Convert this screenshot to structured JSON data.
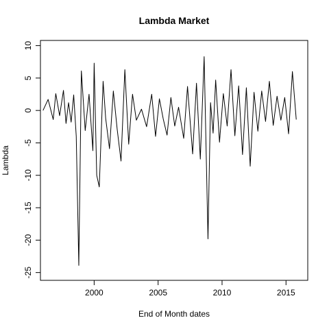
{
  "chart_data": {
    "type": "line",
    "title": "Lambda Market",
    "xlabel": "End of Month dates",
    "ylabel": "Lambda",
    "xlim": [
      1995.8,
      2016.7
    ],
    "ylim": [
      -26.2,
      10.8
    ],
    "grid": false,
    "line_color": "#000000",
    "x_ticks": [
      2000,
      2005,
      2010,
      2015
    ],
    "x_tick_labels": [
      "2000",
      "2005",
      "2010",
      "2015"
    ],
    "y_ticks": [
      10,
      5,
      0,
      -5,
      -10,
      -15,
      -20,
      -25
    ],
    "y_tick_labels": [
      "10",
      "5",
      "0",
      "-5",
      "-10",
      "-15",
      "-20",
      "-25"
    ],
    "series": [
      {
        "x": [
          1996.0,
          1996.4,
          1996.8,
          1997.0,
          1997.3,
          1997.6,
          1997.8,
          1998.0,
          1998.2,
          1998.4,
          1998.6,
          1998.8,
          1999.0,
          1999.3,
          1999.6,
          1999.9,
          2000.0,
          2000.2,
          2000.4,
          2000.7,
          2000.9,
          2001.2,
          2001.5,
          2001.8,
          2002.1,
          2002.4,
          2002.7,
          2003.0,
          2003.3,
          2003.7,
          2004.1,
          2004.5,
          2004.8,
          2005.1,
          2005.4,
          2005.7,
          2006.0,
          2006.3,
          2006.6,
          2007.0,
          2007.3,
          2007.7,
          2008.0,
          2008.3,
          2008.6,
          2008.9,
          2009.1,
          2009.3,
          2009.5,
          2009.8,
          2010.1,
          2010.4,
          2010.7,
          2011.0,
          2011.3,
          2011.6,
          2011.9,
          2012.2,
          2012.5,
          2012.8,
          2013.1,
          2013.4,
          2013.7,
          2014.0,
          2014.3,
          2014.6,
          2014.9,
          2015.2,
          2015.5,
          2015.8
        ],
        "y": [
          0.0,
          1.7,
          -1.4,
          2.6,
          -0.8,
          3.1,
          -2.0,
          1.2,
          -1.8,
          2.4,
          -4.0,
          -23.9,
          6.1,
          -3.1,
          2.5,
          -6.2,
          7.3,
          -10.0,
          -11.8,
          4.5,
          -1.2,
          -5.9,
          3.0,
          -2.9,
          -7.8,
          6.3,
          -5.2,
          2.5,
          -1.5,
          0.2,
          -2.5,
          2.5,
          -4.0,
          1.8,
          -1.3,
          -3.8,
          2.0,
          -2.4,
          0.5,
          -4.3,
          3.7,
          -6.7,
          4.2,
          -7.5,
          8.3,
          -19.8,
          1.2,
          -3.5,
          4.7,
          -4.9,
          2.6,
          -2.4,
          6.3,
          -3.9,
          3.8,
          -6.8,
          3.5,
          -8.6,
          2.8,
          -3.2,
          3.0,
          -1.7,
          4.5,
          -2.3,
          2.2,
          -1.5,
          2.0,
          -3.6,
          6.0,
          -1.4
        ]
      }
    ]
  }
}
